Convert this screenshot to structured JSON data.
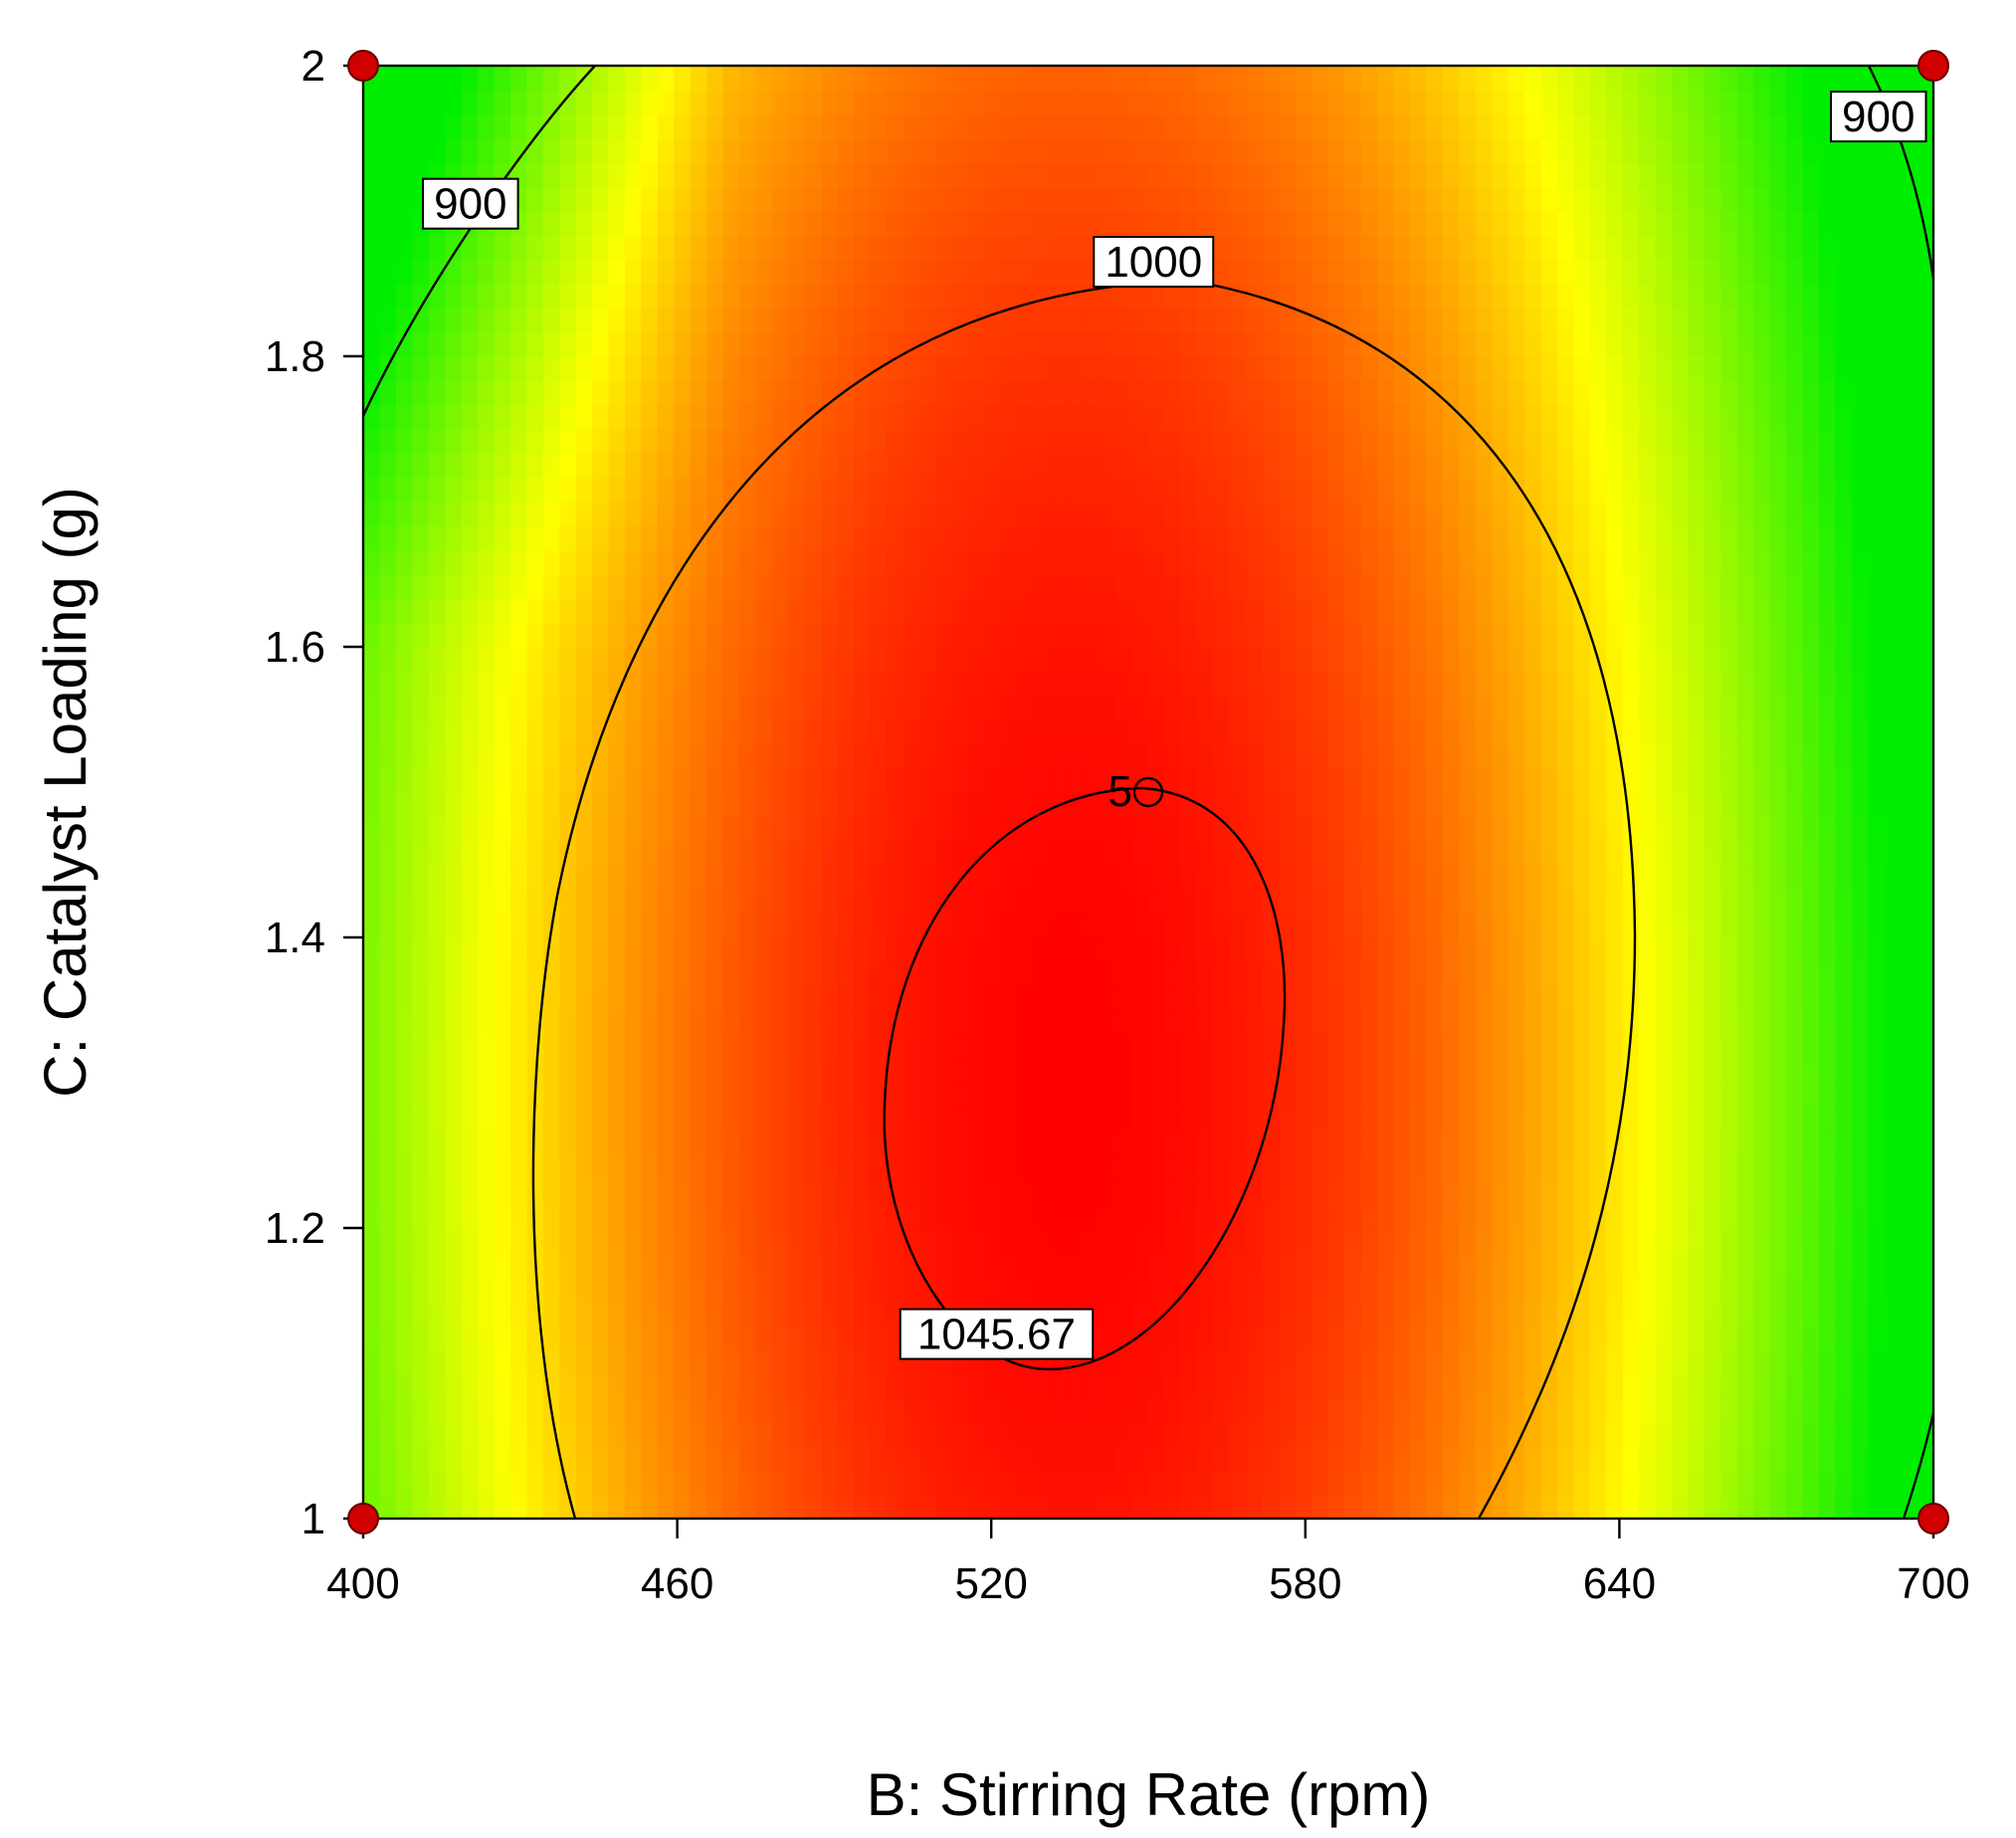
{
  "chart_data": {
    "type": "contour",
    "title": "",
    "xlabel": "B: Stirring Rate (rpm)",
    "ylabel": "C: Catalyst Loading (g)",
    "xlim": [
      400,
      700
    ],
    "ylim": [
      1,
      2
    ],
    "x_ticks": [
      {
        "value": 400,
        "label": "400"
      },
      {
        "value": 460,
        "label": "460"
      },
      {
        "value": 520,
        "label": "520"
      },
      {
        "value": 580,
        "label": "580"
      },
      {
        "value": 640,
        "label": "640"
      },
      {
        "value": 700,
        "label": "700"
      }
    ],
    "y_ticks": [
      {
        "value": 1,
        "label": "1"
      },
      {
        "value": 1.2,
        "label": "1.2"
      },
      {
        "value": 1.4,
        "label": "1.4"
      },
      {
        "value": 1.6,
        "label": "1.6"
      },
      {
        "value": 1.8,
        "label": "1.8"
      },
      {
        "value": 2,
        "label": "2"
      }
    ],
    "color_scale": {
      "low": "#00ee00",
      "mid": "#ffff00",
      "high": "#ff0000"
    },
    "response_peak": {
      "x": 535,
      "y": 1.3,
      "value": 1045.67
    },
    "contour_levels": [
      {
        "level": 900,
        "label": "900"
      },
      {
        "level": 1000,
        "label": "1000"
      },
      {
        "level": 1045.67,
        "label": "1045.67"
      }
    ],
    "contour_labels": [
      {
        "text": "900",
        "x": 420.5,
        "y": 1.905
      },
      {
        "text": "900",
        "x": 689.5,
        "y": 1.965
      },
      {
        "text": "1000",
        "x": 551,
        "y": 1.865
      },
      {
        "text": "1045.67",
        "x": 521,
        "y": 1.127
      }
    ],
    "design_points": [
      {
        "x": 400,
        "y": 2,
        "marker": "filled-red"
      },
      {
        "x": 700,
        "y": 2,
        "marker": "filled-red"
      },
      {
        "x": 400,
        "y": 1,
        "marker": "filled-red"
      },
      {
        "x": 700,
        "y": 1,
        "marker": "filled-red"
      },
      {
        "x": 550,
        "y": 1.5,
        "marker": "open-circle",
        "label": "5"
      }
    ]
  }
}
